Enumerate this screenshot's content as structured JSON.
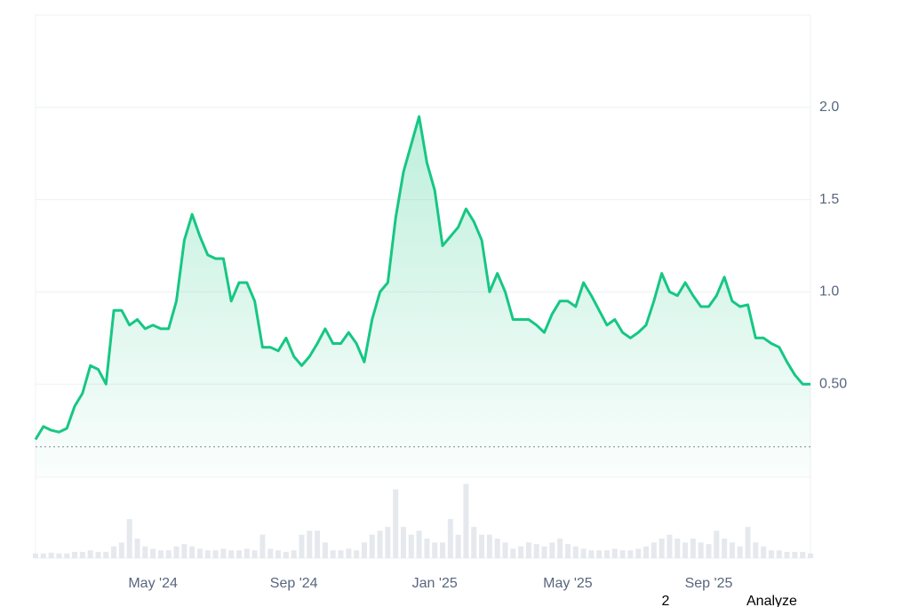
{
  "chart_data": {
    "type": "line",
    "categories": [
      null,
      null,
      null,
      null,
      null,
      null,
      null,
      null,
      null,
      null,
      null,
      null,
      null,
      null,
      null,
      "May '24",
      null,
      null,
      null,
      null,
      null,
      null,
      null,
      null,
      null,
      null,
      null,
      null,
      null,
      null,
      null,
      null,
      null,
      "Sep '24",
      null,
      null,
      null,
      null,
      null,
      null,
      null,
      null,
      null,
      null,
      null,
      null,
      null,
      null,
      null,
      null,
      null,
      "Jan '25",
      null,
      null,
      null,
      null,
      null,
      null,
      null,
      null,
      null,
      null,
      null,
      null,
      null,
      null,
      null,
      null,
      "May '25",
      null,
      null,
      null,
      null,
      null,
      null,
      null,
      null,
      null,
      null,
      null,
      null,
      null,
      null,
      null,
      null,
      null,
      "Sep '25",
      null,
      null,
      null,
      null,
      null,
      null,
      null,
      null,
      null,
      null,
      null,
      null,
      null
    ],
    "values": [
      0.2,
      0.27,
      0.25,
      0.24,
      0.26,
      0.38,
      0.45,
      0.6,
      0.58,
      0.5,
      0.9,
      0.9,
      0.82,
      0.85,
      0.8,
      0.82,
      0.8,
      0.8,
      0.95,
      1.28,
      1.42,
      1.3,
      1.2,
      1.18,
      1.18,
      0.95,
      1.05,
      1.05,
      0.95,
      0.7,
      0.7,
      0.68,
      0.75,
      0.65,
      0.6,
      0.65,
      0.72,
      0.8,
      0.72,
      0.72,
      0.78,
      0.72,
      0.62,
      0.85,
      1.0,
      1.05,
      1.4,
      1.65,
      1.8,
      1.95,
      1.7,
      1.55,
      1.25,
      1.3,
      1.35,
      1.45,
      1.38,
      1.28,
      1.0,
      1.1,
      1.0,
      0.85,
      0.85,
      0.85,
      0.82,
      0.78,
      0.88,
      0.95,
      0.95,
      0.92,
      1.05,
      0.98,
      0.9,
      0.82,
      0.85,
      0.78,
      0.75,
      0.78,
      0.82,
      0.95,
      1.1,
      1.0,
      0.98,
      1.05,
      0.98,
      0.92,
      0.92,
      0.98,
      1.08,
      0.95,
      0.92,
      0.93,
      0.75,
      0.75,
      0.72,
      0.7,
      0.62,
      0.55,
      0.5,
      0.5
    ],
    "color": "#16c784",
    "ylim": [
      0,
      2.5
    ],
    "yticks": [
      {
        "value": 0.5,
        "label": "0.50"
      },
      {
        "value": 1,
        "label": "1.0"
      },
      {
        "value": 1.5,
        "label": "1.5"
      },
      {
        "value": 2,
        "label": "2.0"
      }
    ],
    "grid": true,
    "reference_line": 0.16,
    "volume": [
      6,
      6,
      7,
      6,
      6,
      8,
      8,
      10,
      8,
      8,
      15,
      20,
      50,
      25,
      15,
      12,
      10,
      10,
      15,
      18,
      15,
      12,
      10,
      10,
      12,
      10,
      10,
      12,
      10,
      30,
      12,
      10,
      8,
      10,
      30,
      35,
      35,
      20,
      10,
      10,
      12,
      10,
      20,
      30,
      35,
      40,
      88,
      40,
      30,
      35,
      25,
      20,
      20,
      50,
      30,
      95,
      40,
      30,
      30,
      25,
      20,
      12,
      15,
      20,
      18,
      15,
      20,
      25,
      18,
      15,
      12,
      10,
      10,
      10,
      12,
      10,
      10,
      12,
      15,
      20,
      25,
      30,
      25,
      20,
      25,
      20,
      18,
      35,
      25,
      20,
      15,
      40,
      20,
      15,
      10,
      10,
      8,
      8,
      8,
      6
    ],
    "volume_lim": [
      0,
      100
    ]
  },
  "toolbar": {
    "badge": 2,
    "action": "Analyze"
  }
}
